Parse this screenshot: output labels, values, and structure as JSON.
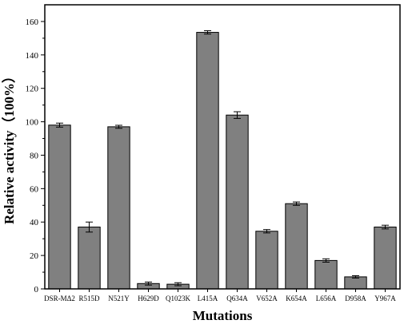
{
  "chart_data": {
    "type": "bar",
    "categories": [
      "DSR-MΔ2",
      "R515D",
      "N521Y",
      "H629D",
      "Q1023K",
      "L415A",
      "Q634A",
      "V652A",
      "K654A",
      "L656A",
      "D958A",
      "Y967A"
    ],
    "values": [
      98,
      37,
      97,
      3.2,
      2.8,
      153.5,
      104,
      34.5,
      51,
      17,
      7.2,
      37
    ],
    "errors": [
      1.2,
      3.0,
      0.9,
      0.9,
      0.9,
      1.0,
      2.0,
      1.0,
      1.0,
      1.0,
      0.7,
      1.1
    ],
    "xlabel": "Mutations",
    "ylabel": "Relative activity（100%）",
    "ylim": [
      0,
      170
    ],
    "yticks": [
      0,
      20,
      40,
      60,
      80,
      100,
      120,
      140,
      160
    ],
    "grid": false,
    "bar_color": "#808080",
    "bar_edge_color": "#000000"
  }
}
